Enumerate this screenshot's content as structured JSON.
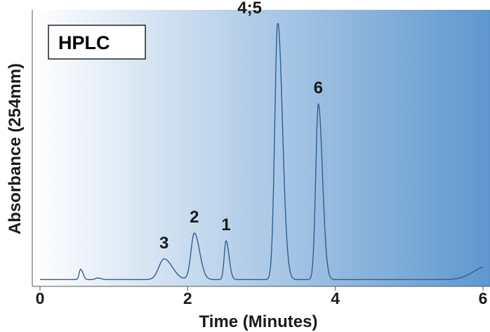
{
  "colors": {
    "gradient_start": "#ffffff",
    "gradient_end": "#5e97cf",
    "trace": "#2f5f92",
    "axis": "#555555",
    "text": "#1b1b1b"
  },
  "chart_data": {
    "type": "line",
    "title": "HPLC",
    "xlabel": "Time (Minutes)",
    "ylabel": "Absorbance (254mm)",
    "xlim": [
      0,
      6
    ],
    "ylim": [
      0,
      100
    ],
    "x_ticks": [
      0,
      2,
      4,
      6
    ],
    "x_tick_labels": [
      "0",
      "2",
      "4",
      "6"
    ],
    "grid": false,
    "baseline": 1,
    "peaks": [
      {
        "label": "",
        "x": 0.55,
        "height": 4,
        "width": 0.02
      },
      {
        "label": "",
        "x": 0.78,
        "height": 0.6,
        "width": 0.03
      },
      {
        "label": "3",
        "x": 1.68,
        "height": 8,
        "width": 0.07
      },
      {
        "label": "2",
        "x": 2.09,
        "height": 18,
        "width": 0.045
      },
      {
        "label": "1",
        "x": 2.52,
        "height": 15,
        "width": 0.025
      },
      {
        "label": "4;5",
        "x": 3.22,
        "height": 100,
        "width": 0.04
      },
      {
        "label": "6",
        "x": 3.77,
        "height": 68,
        "width": 0.035
      },
      {
        "label": "",
        "x": 6.05,
        "height": 5,
        "width": 0.18
      }
    ]
  }
}
